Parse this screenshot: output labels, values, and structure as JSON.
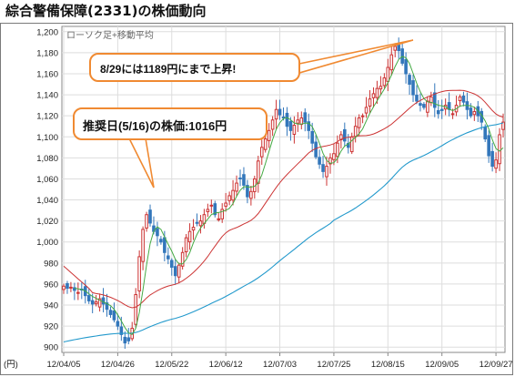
{
  "title": "綜合警備保障(2331)の株価動向",
  "legend": "ローソク足+移動平均",
  "annotations": {
    "high_note": "8/29には1189円にまで上昇!",
    "recommend_note": "推奨日(5/16)の株価:1016円"
  },
  "colors": {
    "up_candle": "#cc3333",
    "down_candle": "#3377bb",
    "ma_short": "#44aa44",
    "ma_mid": "#cc3333",
    "ma_long": "#2299cc",
    "callout_border": "#f08a32",
    "grid": "#dddddd"
  },
  "chart_data": {
    "type": "candlestick",
    "title": "綜合警備保障(2331)の株価動向",
    "ylabel": "(円)",
    "ylim": [
      895,
      1205
    ],
    "y_ticks": [
      900,
      920,
      940,
      960,
      980,
      1000,
      1020,
      1040,
      1060,
      1080,
      1100,
      1120,
      1140,
      1160,
      1180,
      1200
    ],
    "y_tick_labels": [
      "900",
      "920",
      "940",
      "960",
      "980",
      "1,000",
      "1,020",
      "1,040",
      "1,060",
      "1,080",
      "1,100",
      "1,120",
      "1,140",
      "1,160",
      "1,180",
      "1,200"
    ],
    "x_tick_labels": [
      "12/04/05",
      "12/04/26",
      "12/05/22",
      "12/06/12",
      "12/07/03",
      "12/07/25",
      "12/08/15",
      "12/09/05",
      "12/09/27"
    ],
    "x_tick_index": [
      0,
      15,
      30,
      45,
      60,
      75,
      90,
      105,
      120
    ],
    "grid": true,
    "closes": [
      958,
      956,
      957,
      954,
      952,
      955,
      949,
      944,
      941,
      943,
      946,
      941,
      936,
      931,
      926,
      920,
      912,
      904,
      906,
      918,
      950,
      986,
      1012,
      1026,
      1018,
      1010,
      1006,
      1000,
      990,
      984,
      976,
      968,
      978,
      990,
      1004,
      1010,
      1014,
      1018,
      1020,
      1026,
      1031,
      1035,
      1026,
      1022,
      1031,
      1037,
      1044,
      1049,
      1056,
      1060,
      1054,
      1043,
      1048,
      1060,
      1077,
      1090,
      1098,
      1106,
      1116,
      1126,
      1121,
      1118,
      1110,
      1106,
      1111,
      1116,
      1118,
      1114,
      1106,
      1094,
      1081,
      1074,
      1067,
      1072,
      1080,
      1084,
      1094,
      1102,
      1096,
      1090,
      1100,
      1110,
      1118,
      1120,
      1128,
      1136,
      1141,
      1146,
      1148,
      1156,
      1166,
      1178,
      1186,
      1182,
      1170,
      1160,
      1150,
      1140,
      1134,
      1130,
      1128,
      1134,
      1138,
      1128,
      1122,
      1125,
      1130,
      1126,
      1122,
      1130,
      1138,
      1133,
      1126,
      1120,
      1124,
      1120,
      1114,
      1098,
      1082,
      1072,
      1078,
      1102,
      1114
    ],
    "candles_per_tick": 15,
    "high_point": {
      "date": "8/29",
      "value": 1189
    },
    "recommend_point": {
      "date": "5/16",
      "value": 1016
    },
    "series": [
      {
        "key": "candles",
        "type": "candlestick"
      },
      {
        "key": "ma_short",
        "type": "line"
      },
      {
        "key": "ma_mid",
        "type": "line"
      },
      {
        "key": "ma_long",
        "type": "line"
      }
    ]
  }
}
